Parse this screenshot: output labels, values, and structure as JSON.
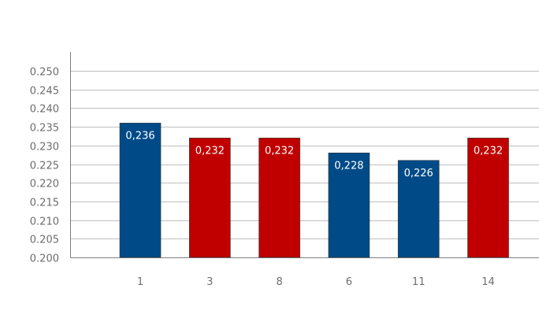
{
  "chart_data": {
    "type": "bar",
    "categories": [
      "1",
      "3",
      "8",
      "6",
      "11",
      "14"
    ],
    "values": [
      0.236,
      0.232,
      0.232,
      0.228,
      0.226,
      0.232
    ],
    "data_labels": [
      "0,236",
      "0,232",
      "0,232",
      "0,228",
      "0,226",
      "0,232"
    ],
    "bar_colors": [
      "#004b87",
      "#c00000",
      "#c00000",
      "#004b87",
      "#004b87",
      "#c00000"
    ],
    "ylim": [
      0.2,
      0.25
    ],
    "yticks": [
      0.2,
      0.205,
      0.21,
      0.215,
      0.22,
      0.225,
      0.23,
      0.235,
      0.24,
      0.245,
      0.25
    ],
    "ytick_labels": [
      "0.200",
      "0.205",
      "0.210",
      "0.215",
      "0.220",
      "0.225",
      "0.230",
      "0.235",
      "0.240",
      "0.245",
      "0.250"
    ],
    "grid": true,
    "colors": {
      "grid": "#bfbfbf",
      "axis": "#808080",
      "tick_text": "#6d6d6d",
      "label_text": "#ffffff"
    }
  }
}
